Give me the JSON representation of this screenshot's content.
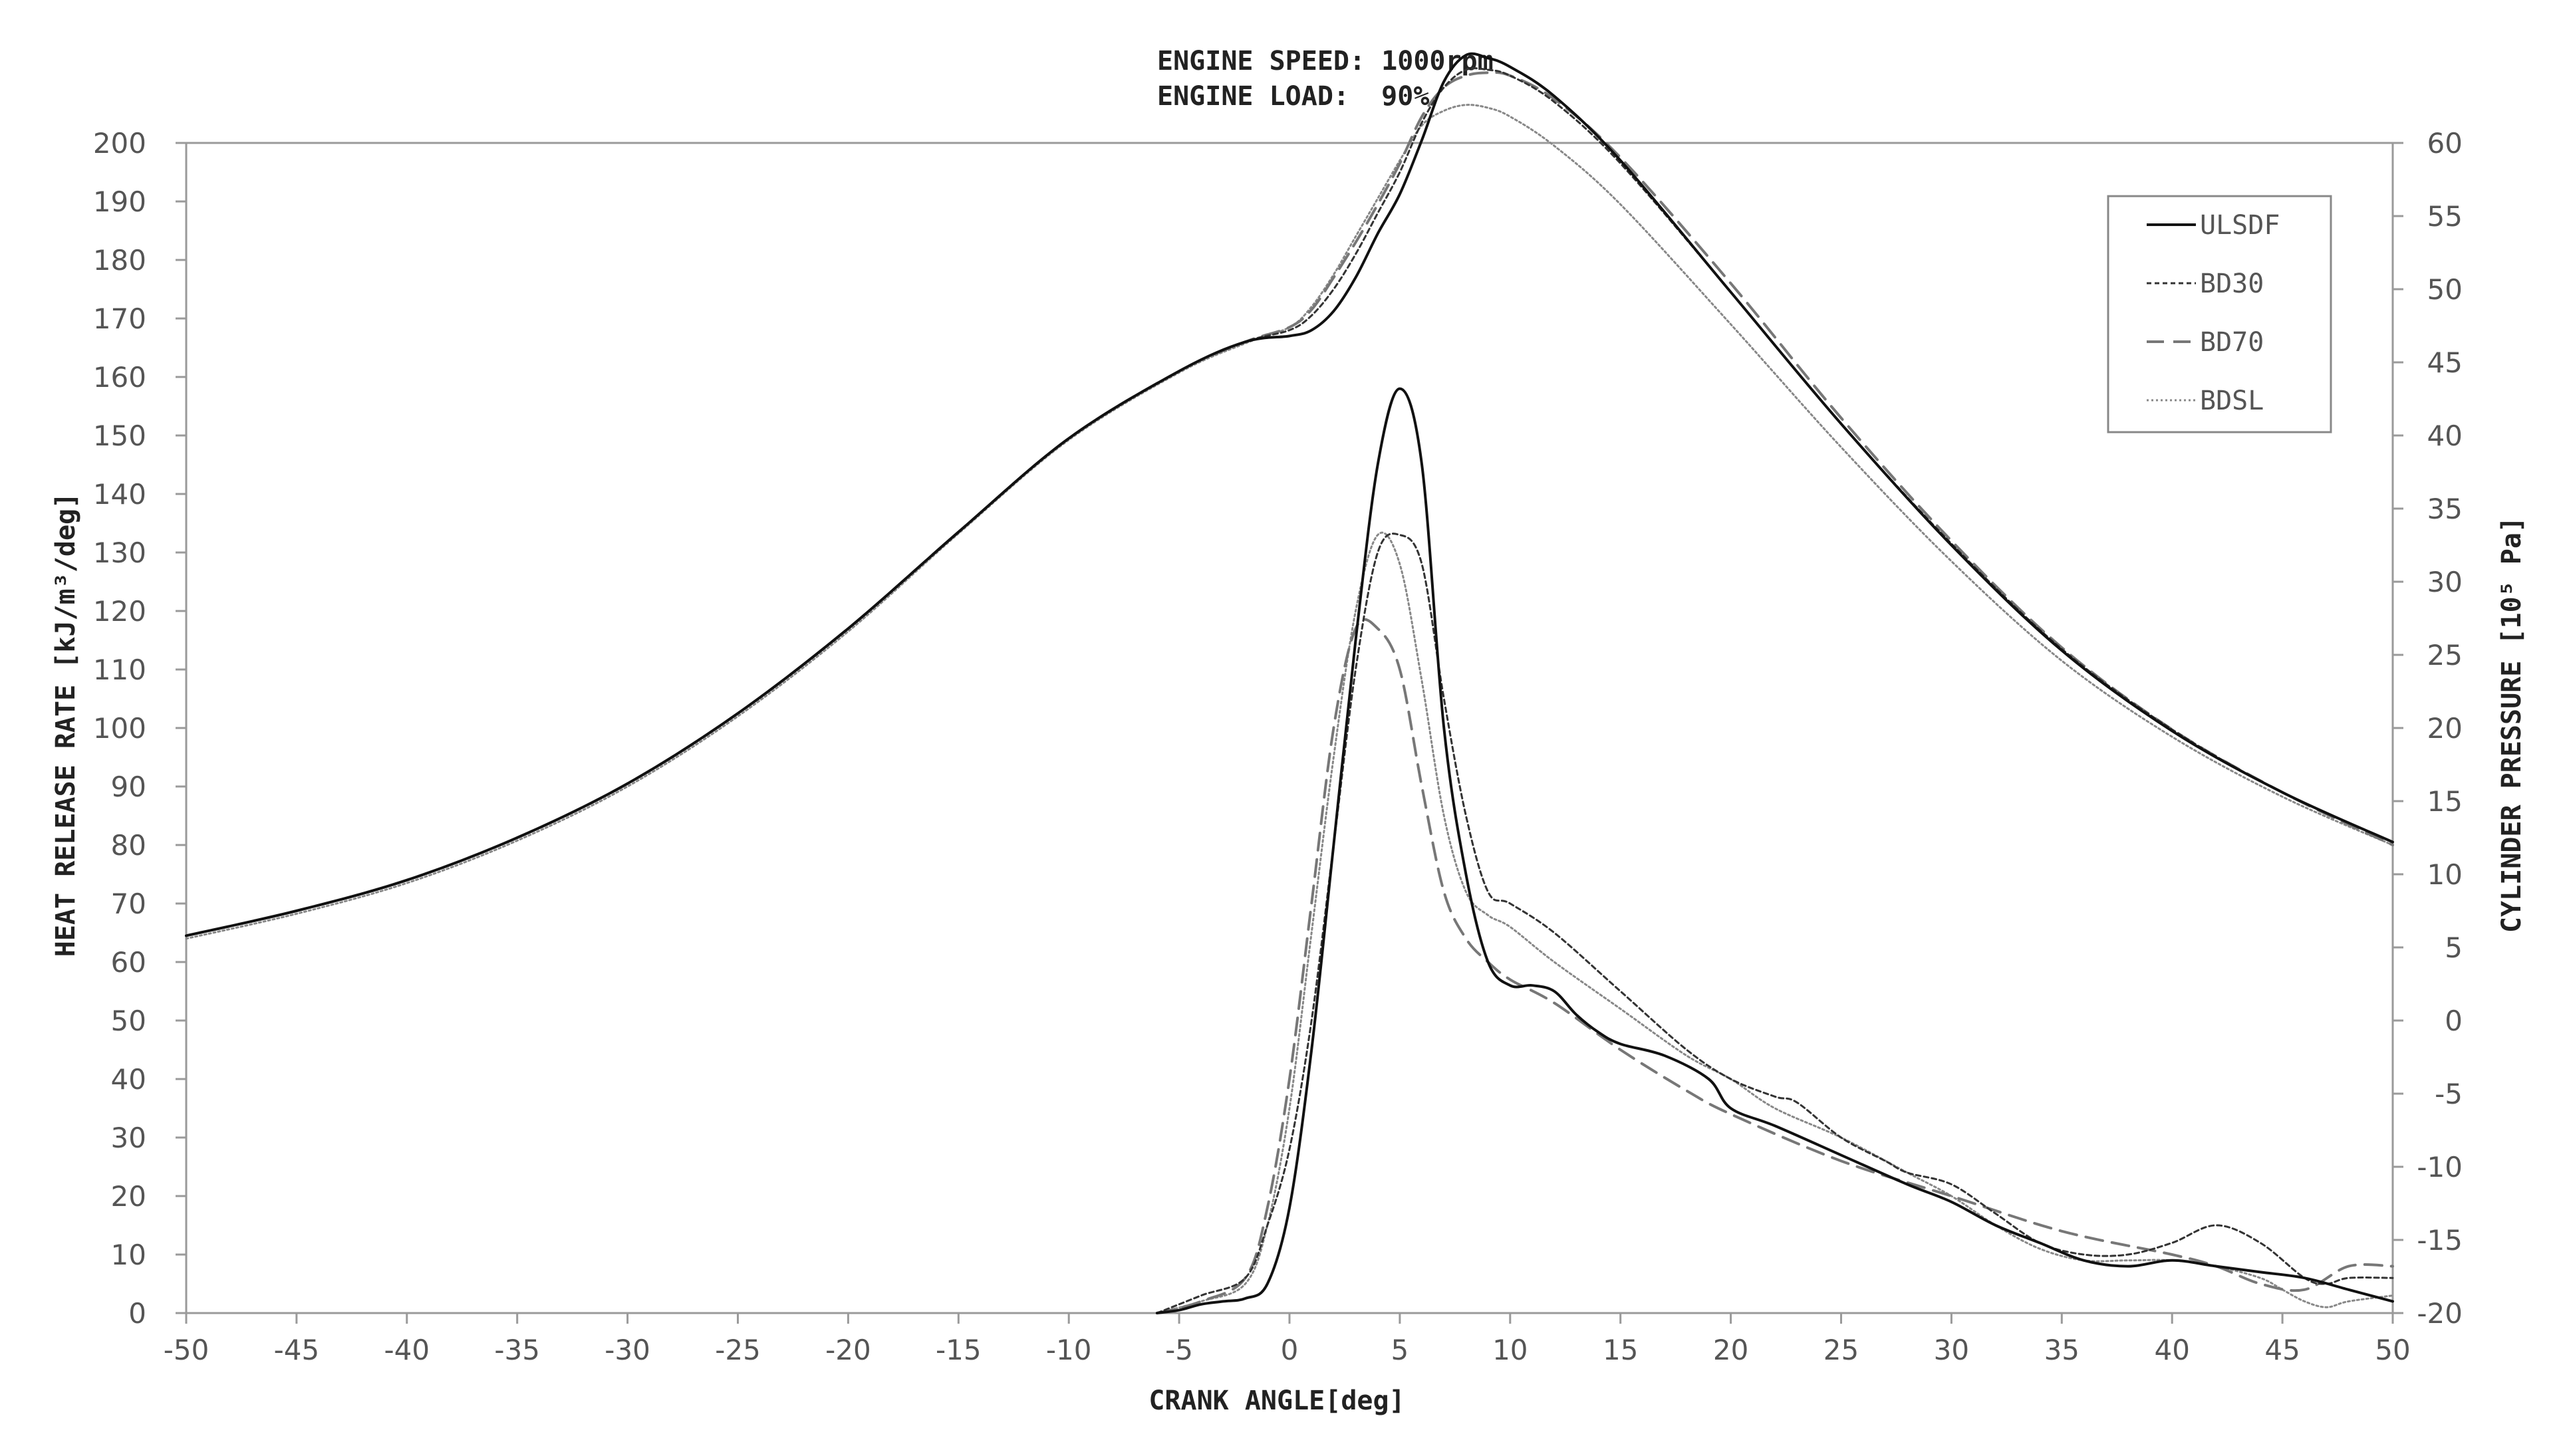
{
  "chart_data": {
    "type": "line",
    "title_lines": [
      "ENGINE SPEED: 1000rpm",
      "ENGINE LOAD:  90%"
    ],
    "xlabel": "CRANK ANGLE[deg]",
    "ylabel_left": "HEAT RELEASE RATE [kJ/m³/deg]",
    "ylabel_right": "CYLINDER PRESSURE [10⁵ Pa]",
    "xlim": [
      -50,
      50
    ],
    "ylim_left": [
      0,
      200
    ],
    "ylim_right": [
      -20,
      60
    ],
    "x_ticks": [
      "-50",
      "-45",
      "-40",
      "-35",
      "-30",
      "-25",
      "-20",
      "-15",
      "-10",
      "-5",
      "0",
      "5",
      "10",
      "15",
      "20",
      "25",
      "30",
      "35",
      "40",
      "45",
      "50"
    ],
    "left_ticks": [
      "0",
      "10",
      "20",
      "30",
      "40",
      "50",
      "60",
      "70",
      "80",
      "90",
      "100",
      "110",
      "120",
      "130",
      "140",
      "150",
      "160",
      "170",
      "180",
      "190",
      "200"
    ],
    "right_ticks": [
      "-20",
      "-15",
      "-10",
      "-5",
      "0",
      "5",
      "10",
      "15",
      "20",
      "25",
      "30",
      "35",
      "40",
      "45",
      "50",
      "55",
      "60"
    ],
    "grid": false,
    "legend_position": "top-right",
    "legend": [
      "ULSDF",
      "BD30",
      "BD70",
      "BDSL"
    ],
    "series_styles": {
      "ULSDF": {
        "color": "#111111",
        "dash": "",
        "width": 4
      },
      "BD30": {
        "color": "#333333",
        "dash": "7 5",
        "width": 3
      },
      "BD70": {
        "color": "#777777",
        "dash": "26 14",
        "width": 4
      },
      "BDSL": {
        "color": "#888888",
        "dash": "3 4",
        "width": 3
      }
    },
    "pressure_series": [
      {
        "name": "ULSDF",
        "axis": "right",
        "points": [
          [
            -50,
            5.8
          ],
          [
            -45,
            7.5
          ],
          [
            -40,
            9.6
          ],
          [
            -35,
            12.5
          ],
          [
            -30,
            16.2
          ],
          [
            -25,
            21.0
          ],
          [
            -20,
            26.8
          ],
          [
            -15,
            33.4
          ],
          [
            -10,
            39.8
          ],
          [
            -5,
            44.4
          ],
          [
            -2,
            46.4
          ],
          [
            0,
            46.8
          ],
          [
            1,
            47.2
          ],
          [
            2,
            48.5
          ],
          [
            3,
            50.8
          ],
          [
            4,
            53.8
          ],
          [
            5,
            56.5
          ],
          [
            6,
            60.2
          ],
          [
            7,
            64.2
          ],
          [
            8,
            66.0
          ],
          [
            9,
            65.8
          ],
          [
            10,
            65.2
          ],
          [
            12,
            63.2
          ],
          [
            15,
            58.8
          ],
          [
            20,
            49.8
          ],
          [
            25,
            40.8
          ],
          [
            30,
            32.5
          ],
          [
            35,
            25.3
          ],
          [
            40,
            19.8
          ],
          [
            45,
            15.6
          ],
          [
            50,
            12.2
          ]
        ]
      },
      {
        "name": "BD30",
        "axis": "right",
        "points": [
          [
            -50,
            5.8
          ],
          [
            -45,
            7.5
          ],
          [
            -40,
            9.6
          ],
          [
            -35,
            12.5
          ],
          [
            -30,
            16.2
          ],
          [
            -25,
            21.0
          ],
          [
            -20,
            26.8
          ],
          [
            -15,
            33.4
          ],
          [
            -10,
            39.8
          ],
          [
            -5,
            44.4
          ],
          [
            -2,
            46.4
          ],
          [
            0,
            47.2
          ],
          [
            1,
            48.2
          ],
          [
            2,
            50.0
          ],
          [
            3,
            52.4
          ],
          [
            4,
            55.2
          ],
          [
            5,
            58.0
          ],
          [
            6,
            61.4
          ],
          [
            7,
            63.8
          ],
          [
            8,
            65.0
          ],
          [
            9,
            65.0
          ],
          [
            10,
            64.6
          ],
          [
            12,
            62.8
          ],
          [
            15,
            58.6
          ],
          [
            20,
            49.8
          ],
          [
            25,
            40.8
          ],
          [
            30,
            32.6
          ],
          [
            35,
            25.4
          ],
          [
            40,
            19.9
          ],
          [
            45,
            15.6
          ],
          [
            50,
            12.2
          ]
        ]
      },
      {
        "name": "BD70",
        "axis": "right",
        "points": [
          [
            -50,
            5.8
          ],
          [
            -45,
            7.5
          ],
          [
            -40,
            9.6
          ],
          [
            -35,
            12.5
          ],
          [
            -30,
            16.2
          ],
          [
            -25,
            21.0
          ],
          [
            -20,
            26.8
          ],
          [
            -15,
            33.4
          ],
          [
            -10,
            39.8
          ],
          [
            -5,
            44.4
          ],
          [
            -2,
            46.4
          ],
          [
            0,
            47.4
          ],
          [
            1,
            48.6
          ],
          [
            2,
            50.8
          ],
          [
            3,
            53.2
          ],
          [
            4,
            55.8
          ],
          [
            5,
            58.6
          ],
          [
            6,
            61.8
          ],
          [
            7,
            63.8
          ],
          [
            8,
            64.6
          ],
          [
            9,
            64.8
          ],
          [
            10,
            64.6
          ],
          [
            12,
            63.0
          ],
          [
            15,
            59.0
          ],
          [
            20,
            50.4
          ],
          [
            25,
            41.2
          ],
          [
            30,
            32.8
          ],
          [
            35,
            25.5
          ],
          [
            40,
            19.9
          ],
          [
            45,
            15.6
          ],
          [
            50,
            12.0
          ]
        ]
      },
      {
        "name": "BDSL",
        "axis": "right",
        "points": [
          [
            -50,
            5.6
          ],
          [
            -45,
            7.3
          ],
          [
            -40,
            9.4
          ],
          [
            -35,
            12.3
          ],
          [
            -30,
            16.0
          ],
          [
            -25,
            20.8
          ],
          [
            -20,
            26.6
          ],
          [
            -15,
            33.3
          ],
          [
            -10,
            39.7
          ],
          [
            -5,
            44.3
          ],
          [
            -2,
            46.3
          ],
          [
            0,
            47.4
          ],
          [
            1,
            48.8
          ],
          [
            2,
            51.0
          ],
          [
            3,
            53.6
          ],
          [
            4,
            56.2
          ],
          [
            5,
            58.8
          ],
          [
            6,
            61.2
          ],
          [
            7,
            62.2
          ],
          [
            8,
            62.6
          ],
          [
            9,
            62.4
          ],
          [
            10,
            61.8
          ],
          [
            12,
            59.8
          ],
          [
            15,
            55.8
          ],
          [
            20,
            47.6
          ],
          [
            25,
            39.2
          ],
          [
            30,
            31.4
          ],
          [
            35,
            24.6
          ],
          [
            40,
            19.4
          ],
          [
            45,
            15.3
          ],
          [
            50,
            12.0
          ]
        ]
      }
    ],
    "heat_release_series": [
      {
        "name": "ULSDF",
        "axis": "left",
        "points": [
          [
            -6,
            0
          ],
          [
            -5,
            0.5
          ],
          [
            -4,
            1.5
          ],
          [
            -3,
            2
          ],
          [
            -2,
            2.5
          ],
          [
            -1,
            5
          ],
          [
            0,
            18
          ],
          [
            1,
            45
          ],
          [
            2,
            80
          ],
          [
            3,
            115
          ],
          [
            4,
            145
          ],
          [
            5,
            158
          ],
          [
            6,
            145
          ],
          [
            7,
            100
          ],
          [
            8,
            75
          ],
          [
            9,
            60
          ],
          [
            10,
            56
          ],
          [
            11,
            56
          ],
          [
            12,
            55
          ],
          [
            13,
            51
          ],
          [
            14,
            48
          ],
          [
            15,
            46
          ],
          [
            17,
            44
          ],
          [
            19,
            40
          ],
          [
            20,
            35
          ],
          [
            22,
            32
          ],
          [
            25,
            27
          ],
          [
            28,
            22
          ],
          [
            30,
            19
          ],
          [
            32,
            15
          ],
          [
            34,
            12
          ],
          [
            36,
            9
          ],
          [
            38,
            8
          ],
          [
            40,
            9
          ],
          [
            42,
            8
          ],
          [
            44,
            7
          ],
          [
            46,
            6
          ],
          [
            48,
            4
          ],
          [
            50,
            2
          ]
        ]
      },
      {
        "name": "BD30",
        "axis": "left",
        "points": [
          [
            -6,
            0
          ],
          [
            -4,
            3
          ],
          [
            -2,
            6
          ],
          [
            -1,
            15
          ],
          [
            0,
            28
          ],
          [
            1,
            50
          ],
          [
            2,
            80
          ],
          [
            3,
            110
          ],
          [
            4,
            130
          ],
          [
            5,
            133
          ],
          [
            6,
            128
          ],
          [
            7,
            105
          ],
          [
            8,
            85
          ],
          [
            9,
            72
          ],
          [
            10,
            70
          ],
          [
            12,
            65
          ],
          [
            15,
            55
          ],
          [
            18,
            45
          ],
          [
            20,
            40
          ],
          [
            22,
            37
          ],
          [
            23,
            36
          ],
          [
            25,
            30
          ],
          [
            27,
            26
          ],
          [
            28,
            24
          ],
          [
            30,
            22
          ],
          [
            32,
            17
          ],
          [
            34,
            12
          ],
          [
            36,
            10
          ],
          [
            38,
            10
          ],
          [
            40,
            12
          ],
          [
            42,
            15
          ],
          [
            44,
            12
          ],
          [
            46,
            6
          ],
          [
            47,
            5
          ],
          [
            48,
            6
          ],
          [
            50,
            6
          ]
        ]
      },
      {
        "name": "BD70",
        "axis": "left",
        "points": [
          [
            -6,
            0
          ],
          [
            -4,
            2
          ],
          [
            -2,
            6
          ],
          [
            -1,
            18
          ],
          [
            0,
            40
          ],
          [
            1,
            70
          ],
          [
            2,
            100
          ],
          [
            3,
            117
          ],
          [
            4,
            117
          ],
          [
            5,
            110
          ],
          [
            6,
            90
          ],
          [
            7,
            72
          ],
          [
            8,
            64
          ],
          [
            9,
            60
          ],
          [
            10,
            57
          ],
          [
            12,
            53
          ],
          [
            15,
            45
          ],
          [
            18,
            38
          ],
          [
            20,
            34
          ],
          [
            25,
            26
          ],
          [
            30,
            20
          ],
          [
            35,
            14
          ],
          [
            40,
            10
          ],
          [
            42,
            8
          ],
          [
            44,
            5
          ],
          [
            46,
            4
          ],
          [
            48,
            8
          ],
          [
            50,
            8
          ]
        ]
      },
      {
        "name": "BDSL",
        "axis": "left",
        "points": [
          [
            -6,
            0
          ],
          [
            -4,
            2
          ],
          [
            -2,
            5
          ],
          [
            -1,
            15
          ],
          [
            0,
            35
          ],
          [
            1,
            65
          ],
          [
            2,
            95
          ],
          [
            3,
            120
          ],
          [
            4,
            133
          ],
          [
            5,
            128
          ],
          [
            6,
            108
          ],
          [
            7,
            85
          ],
          [
            8,
            72
          ],
          [
            9,
            68
          ],
          [
            10,
            66
          ],
          [
            12,
            60
          ],
          [
            15,
            52
          ],
          [
            18,
            44
          ],
          [
            20,
            40
          ],
          [
            22,
            35
          ],
          [
            25,
            30
          ],
          [
            28,
            24
          ],
          [
            30,
            20
          ],
          [
            32,
            15
          ],
          [
            34,
            11
          ],
          [
            36,
            9
          ],
          [
            38,
            9
          ],
          [
            40,
            9
          ],
          [
            42,
            8
          ],
          [
            44,
            6
          ],
          [
            45,
            4
          ],
          [
            46,
            2
          ],
          [
            47,
            1
          ],
          [
            48,
            2
          ],
          [
            50,
            3
          ]
        ]
      }
    ]
  }
}
